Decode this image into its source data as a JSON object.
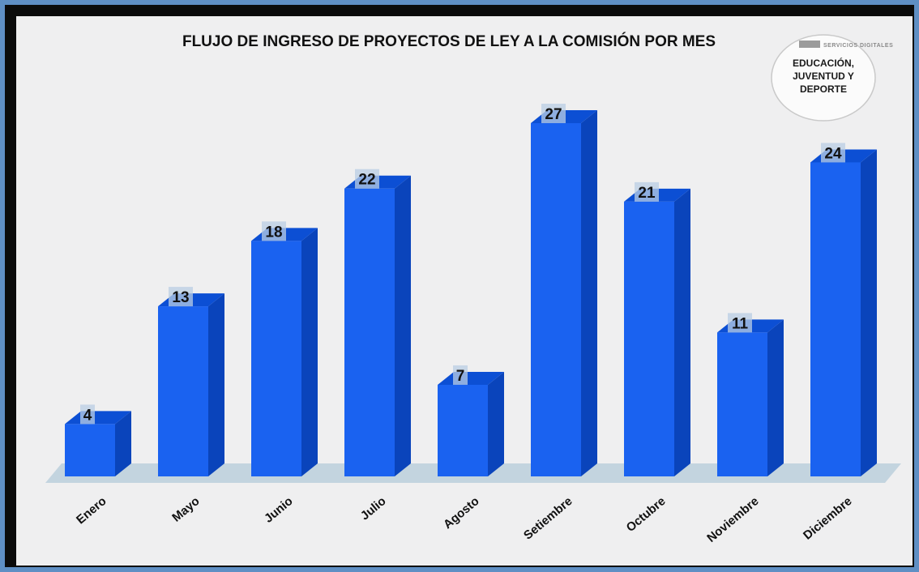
{
  "colors": {
    "bar_front": "#1a62f0",
    "bar_side": "#0a44bb",
    "bar_top": "#0c4fd4",
    "floor": "#c3d4df",
    "label_box": "#b9cde4"
  },
  "logo": {
    "small_text": "SERVICIOS DIGITALES",
    "lines": [
      "EDUCACIÓN,",
      "JUVENTUD Y",
      "DEPORTE"
    ]
  },
  "chart_data": {
    "type": "bar",
    "title": "FLUJO DE INGRESO DE PROYECTOS DE LEY A LA COMISIÓN POR MES",
    "categories": [
      "Enero",
      "Mayo",
      "Junio",
      "Julio",
      "Agosto",
      "Setiembre",
      "Octubre",
      "Noviembre",
      "Diciembre"
    ],
    "values": [
      4,
      13,
      18,
      22,
      7,
      27,
      21,
      11,
      24
    ],
    "xlabel": "",
    "ylabel": "",
    "ylim": [
      0,
      27
    ],
    "grid": false,
    "legend": "none",
    "data_labels": true,
    "style": "3d-column"
  }
}
